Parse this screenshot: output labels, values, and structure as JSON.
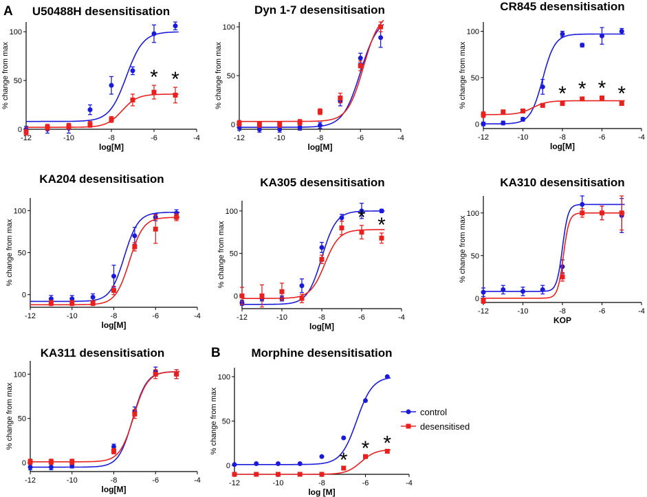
{
  "figure": {
    "panel_labels": [
      "A",
      "B"
    ],
    "legend": [
      {
        "name": "control",
        "color": "#1a1adb",
        "marker": "circle"
      },
      {
        "name": "desensitised",
        "color": "#e8201e",
        "marker": "square"
      }
    ],
    "colors": {
      "control": "#1a1adb",
      "desensitised": "#e8201e",
      "axis": "#000000"
    }
  },
  "chart_data": [
    {
      "type": "scatter",
      "title": "U50488H desensitisation",
      "xlabel": "log[M]",
      "ylabel": "% change from max",
      "xlim": [
        -12,
        -4
      ],
      "ylim": [
        0,
        110
      ],
      "xticks": [
        -12,
        -10,
        -8,
        -6,
        -4
      ],
      "yticks": [
        0,
        50,
        100
      ],
      "series": [
        {
          "name": "control",
          "x": [
            -12,
            -11,
            -10,
            -9,
            -8,
            -7,
            -6,
            -5
          ],
          "y": [
            0,
            0,
            1,
            20,
            45,
            60,
            98,
            106
          ],
          "err": [
            3,
            4,
            5,
            5,
            9,
            4,
            9,
            4
          ],
          "fit": {
            "bottom": 8,
            "top": 100,
            "ec50": -7.3,
            "hill": 1.1
          }
        },
        {
          "name": "desensitised",
          "x": [
            -12,
            -11,
            -10,
            -9,
            -8,
            -7,
            -6,
            -5
          ],
          "y": [
            -3,
            2,
            3,
            5,
            10,
            30,
            38,
            35
          ],
          "err": [
            3,
            3,
            3,
            3,
            3,
            6,
            7,
            8
          ],
          "fit": {
            "bottom": 2,
            "top": 36,
            "ec50": -7.5,
            "hill": 1.2
          }
        }
      ],
      "significance_x": [
        -6,
        -5
      ],
      "annotations": [
        "*",
        "*"
      ]
    },
    {
      "type": "scatter",
      "title": "Dyn 1-7 desensitisation",
      "xlabel": "log[M]",
      "ylabel": "% change from max",
      "xlim": [
        -12,
        -4
      ],
      "ylim": [
        -5,
        105
      ],
      "xticks": [
        -12,
        -10,
        -8,
        -6,
        -4
      ],
      "yticks": [
        0,
        50,
        100
      ],
      "series": [
        {
          "name": "control",
          "x": [
            -12,
            -11,
            -10,
            -9,
            -8,
            -7,
            -6,
            -5
          ],
          "y": [
            -3,
            -5,
            -5,
            -3,
            -1,
            24,
            68,
            89
          ],
          "err": [
            3,
            3,
            3,
            3,
            3,
            5,
            5,
            10
          ],
          "fit": {
            "bottom": -3,
            "top": 110,
            "ec50": -6.0,
            "hill": 1.0
          }
        },
        {
          "name": "desensitised",
          "x": [
            -12,
            -11,
            -10,
            -9,
            -8,
            -7,
            -6,
            -5
          ],
          "y": [
            1,
            0,
            0,
            2,
            13,
            27,
            60,
            100
          ],
          "err": [
            3,
            3,
            3,
            3,
            3,
            5,
            5,
            5
          ],
          "fit": {
            "bottom": 3,
            "top": 115,
            "ec50": -5.85,
            "hill": 1.1
          }
        }
      ]
    },
    {
      "type": "scatter",
      "title": "CR845 desensitisation",
      "xlabel": "log[M]",
      "ylabel": "% change from max",
      "xlim": [
        -12,
        -4
      ],
      "ylim": [
        -5,
        110
      ],
      "xticks": [
        -12,
        -10,
        -8,
        -6,
        -4
      ],
      "yticks": [
        0,
        50,
        100
      ],
      "series": [
        {
          "name": "control",
          "x": [
            -12,
            -11,
            -10,
            -9,
            -8,
            -7,
            -6,
            -5
          ],
          "y": [
            0,
            1,
            5,
            40,
            97,
            85,
            95,
            100
          ],
          "err": [
            2,
            2,
            2,
            8,
            3,
            2,
            9,
            3
          ],
          "fit": {
            "bottom": 0,
            "top": 97,
            "ec50": -9.0,
            "hill": 1.4
          }
        },
        {
          "name": "desensitised",
          "x": [
            -12,
            -11,
            -10,
            -9,
            -8,
            -7,
            -6,
            -5
          ],
          "y": [
            10,
            13,
            14,
            20,
            22,
            27,
            28,
            22
          ],
          "err": [
            3,
            2,
            2,
            2,
            2,
            2,
            2,
            2
          ],
          "fit": {
            "bottom": 10,
            "top": 25,
            "ec50": -9.5,
            "hill": 1.2
          }
        }
      ],
      "significance_x": [
        -8,
        -7,
        -6,
        -5
      ],
      "annotations": [
        "*",
        "*",
        "*",
        "*"
      ]
    },
    {
      "type": "scatter",
      "title": "KA204 desensitisation",
      "xlabel": "log[M]",
      "ylabel": "% change from max",
      "xlim": [
        -12,
        -4
      ],
      "ylim": [
        -15,
        115
      ],
      "xticks": [
        -12,
        -10,
        -8,
        -6,
        -4
      ],
      "yticks": [
        0,
        50,
        100
      ],
      "series": [
        {
          "name": "control",
          "x": [
            -11,
            -10,
            -9,
            -8,
            -7,
            -6,
            -5
          ],
          "y": [
            -5,
            -5,
            -3,
            22,
            70,
            92,
            97
          ],
          "err": [
            4,
            4,
            4,
            13,
            10,
            4,
            4
          ],
          "fit": {
            "bottom": -8,
            "top": 98,
            "ec50": -7.5,
            "hill": 1.3
          }
        },
        {
          "name": "desensitised",
          "x": [
            -11,
            -10,
            -9,
            -8,
            -7,
            -6,
            -5
          ],
          "y": [
            -10,
            -10,
            -10,
            5,
            57,
            78,
            92
          ],
          "err": [
            3,
            3,
            3,
            5,
            5,
            17,
            4
          ],
          "fit": {
            "bottom": -12,
            "top": 92,
            "ec50": -7.25,
            "hill": 1.3
          }
        }
      ]
    },
    {
      "type": "scatter",
      "title": "KA305 desensitisation",
      "xlabel": "log[M]",
      "ylabel": "% change from max",
      "xlim": [
        -12,
        -4
      ],
      "ylim": [
        -15,
        112
      ],
      "xticks": [
        -12,
        -10,
        -8,
        -6,
        -4
      ],
      "yticks": [
        0,
        50,
        100
      ],
      "series": [
        {
          "name": "control",
          "x": [
            -12,
            -11,
            -10,
            -9,
            -8,
            -7,
            -6,
            -5
          ],
          "y": [
            -8,
            -3,
            -3,
            12,
            57,
            92,
            100,
            100
          ],
          "err": [
            3,
            3,
            3,
            8,
            6,
            4,
            9,
            2
          ],
          "fit": {
            "bottom": -10,
            "top": 100,
            "ec50": -8.0,
            "hill": 1.2
          }
        },
        {
          "name": "desensitised",
          "x": [
            -12,
            -11,
            -10,
            -9,
            -8,
            -7,
            -6,
            -5
          ],
          "y": [
            0,
            0,
            5,
            -3,
            43,
            80,
            75,
            68
          ],
          "err": [
            10,
            13,
            10,
            5,
            5,
            8,
            8,
            6
          ],
          "fit": {
            "bottom": -3,
            "top": 78,
            "ec50": -7.85,
            "hill": 1.2
          }
        }
      ],
      "significance_x": [
        -6,
        -5
      ],
      "annotations": [
        "*",
        "*"
      ]
    },
    {
      "type": "scatter",
      "title": "KA310 desensitisation",
      "xlabel": "KOP",
      "ylabel": "% change from max",
      "xlim": [
        -12,
        -4
      ],
      "ylim": [
        -5,
        120
      ],
      "xticks": [
        -12,
        -10,
        -8,
        -6,
        -4
      ],
      "yticks": [
        0,
        50,
        100
      ],
      "series": [
        {
          "name": "control",
          "x": [
            -12,
            -11,
            -10,
            -9,
            -8,
            -7,
            -6,
            -5
          ],
          "y": [
            7,
            10,
            8,
            10,
            37,
            110,
            100,
            97
          ],
          "err": [
            5,
            5,
            5,
            5,
            8,
            10,
            8,
            20
          ],
          "fit": {
            "bottom": 8,
            "top": 110,
            "ec50": -8.0,
            "hill": 3.0
          }
        },
        {
          "name": "desensitised",
          "x": [
            -12,
            -8,
            -7,
            -6,
            -5
          ],
          "y": [
            -3,
            25,
            100,
            100,
            100
          ],
          "err": [
            3,
            5,
            5,
            8,
            20
          ],
          "fit": {
            "bottom": 0,
            "top": 100,
            "ec50": -7.95,
            "hill": 3.0
          }
        }
      ]
    },
    {
      "type": "scatter",
      "title": "KA311 desensitisation",
      "xlabel": "log[M]",
      "ylabel": "% change from max",
      "xlim": [
        -12,
        -4
      ],
      "ylim": [
        -10,
        115
      ],
      "xticks": [
        -12,
        -10,
        -8,
        -6,
        -4
      ],
      "yticks": [
        0,
        50,
        100
      ],
      "series": [
        {
          "name": "control",
          "x": [
            -12,
            -11,
            -10,
            -8,
            -7,
            -6,
            -5
          ],
          "y": [
            -5,
            -5,
            -3,
            18,
            58,
            103,
            100
          ],
          "err": [
            3,
            3,
            3,
            3,
            5,
            5,
            5
          ],
          "fit": {
            "bottom": -5,
            "top": 103,
            "ec50": -7.1,
            "hill": 1.3
          }
        },
        {
          "name": "desensitised",
          "x": [
            -12,
            -11,
            -10,
            -8,
            -7,
            -6,
            -5
          ],
          "y": [
            1,
            1,
            1,
            13,
            55,
            100,
            100
          ],
          "err": [
            3,
            3,
            3,
            3,
            5,
            5,
            5
          ],
          "fit": {
            "bottom": 1,
            "top": 103,
            "ec50": -7.05,
            "hill": 1.3
          }
        }
      ]
    },
    {
      "type": "scatter",
      "title": "Morphine desensitisation",
      "xlabel": "log [M]",
      "ylabel": "% change from max",
      "xlim": [
        -12,
        -4
      ],
      "ylim": [
        -10,
        110
      ],
      "xticks": [
        -12,
        -10,
        -8,
        -6,
        -4
      ],
      "yticks": [
        0,
        50,
        100
      ],
      "series": [
        {
          "name": "control",
          "x": [
            -12,
            -11,
            -10,
            -9,
            -8,
            -7,
            -6,
            -5
          ],
          "y": [
            1,
            2,
            2,
            2,
            10,
            31,
            73,
            100
          ],
          "err": [
            0,
            0,
            0,
            0,
            0,
            0,
            0,
            0
          ],
          "fit": {
            "bottom": 1,
            "top": 100,
            "ec50": -6.4,
            "hill": 1.2
          }
        },
        {
          "name": "desensitised",
          "x": [
            -12,
            -11,
            -10,
            -9,
            -8,
            -7,
            -6,
            -5
          ],
          "y": [
            -10,
            -10,
            -10,
            -10,
            -10,
            -3,
            10,
            16
          ],
          "err": [
            0,
            0,
            0,
            0,
            0,
            0,
            0,
            0
          ],
          "fit": {
            "bottom": -10,
            "top": 18,
            "ec50": -6.2,
            "hill": 1.3
          }
        }
      ],
      "significance_x": [
        -7,
        -6,
        -5
      ],
      "annotations": [
        "*",
        "*",
        "*"
      ]
    }
  ]
}
